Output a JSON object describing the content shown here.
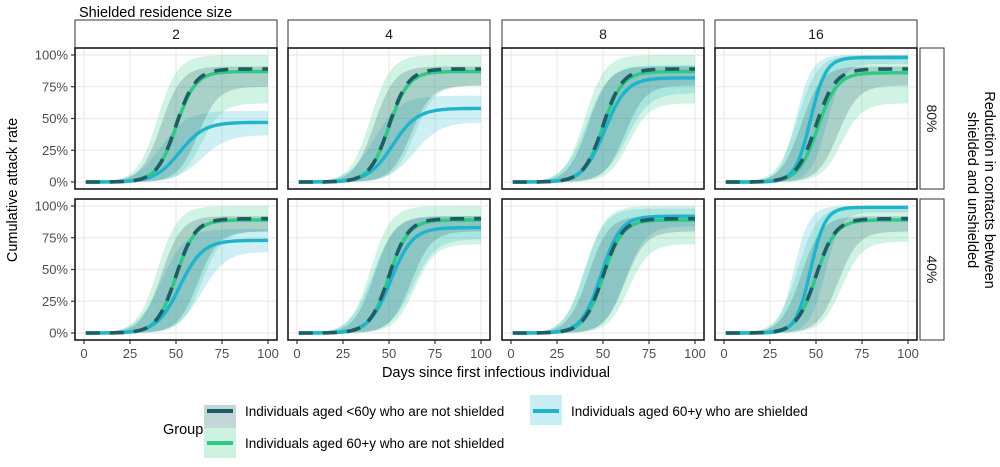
{
  "chart_data": {
    "type": "line",
    "title": "",
    "facet_col_title": "Shielded residence size",
    "facet_row_title": [
      "Reduction in contacts between",
      "shielded and unshielded"
    ],
    "xlabel": "Days since first infectious individual",
    "ylabel": "Cumulative attack rate",
    "xlim": [
      0,
      100
    ],
    "ylim": [
      0,
      1
    ],
    "x_ticks": [
      0,
      25,
      50,
      75,
      100
    ],
    "y_ticks": [
      0,
      0.25,
      0.5,
      0.75,
      1
    ],
    "y_tick_labels": [
      "0%",
      "25%",
      "50%",
      "75%",
      "100%"
    ],
    "grid": true,
    "columns": [
      "2",
      "4",
      "8",
      "16"
    ],
    "rows": [
      "80%",
      "40%"
    ],
    "legend": {
      "title": "Group",
      "placement": "bottom",
      "entries": [
        {
          "key": "young",
          "label": "Individuals aged <60y who are not shielded",
          "color": "#1f5c63",
          "fill": "#c5d6d8",
          "dash": true
        },
        {
          "key": "shielded",
          "label": "Individuals aged 60+y who are shielded",
          "color": "#20b4cc",
          "fill": "#c8eef3",
          "dash": false
        },
        {
          "key": "old",
          "label": "Individuals aged 60+y who are not shielded",
          "color": "#2dca85",
          "fill": "#cdf2df",
          "dash": false
        }
      ]
    },
    "series_model": "logistic curves: final_size, midpoint_day, steepness; ribbon = lower/upper final and midpoint ranges",
    "panels": [
      {
        "row": "80%",
        "col": "2",
        "young": {
          "final": 0.89,
          "mid": 50,
          "k": 0.19,
          "lo_final": 0.75,
          "hi_final": 0.91,
          "lo_mid": 62,
          "hi_mid": 42
        },
        "old": {
          "final": 0.87,
          "mid": 50,
          "k": 0.19,
          "lo_final": 0.62,
          "hi_final": 1.0,
          "lo_mid": 64,
          "hi_mid": 40
        },
        "shielded": {
          "final": 0.47,
          "mid": 52,
          "k": 0.15,
          "lo_final": 0.37,
          "hi_final": 0.56,
          "lo_mid": 64,
          "hi_mid": 42
        }
      },
      {
        "row": "80%",
        "col": "4",
        "young": {
          "final": 0.89,
          "mid": 50,
          "k": 0.19,
          "lo_final": 0.76,
          "hi_final": 0.91,
          "lo_mid": 62,
          "hi_mid": 42
        },
        "old": {
          "final": 0.87,
          "mid": 50,
          "k": 0.19,
          "lo_final": 0.76,
          "hi_final": 1.0,
          "lo_mid": 64,
          "hi_mid": 40
        },
        "shielded": {
          "final": 0.58,
          "mid": 52,
          "k": 0.15,
          "lo_final": 0.47,
          "hi_final": 0.68,
          "lo_mid": 64,
          "hi_mid": 42
        }
      },
      {
        "row": "80%",
        "col": "8",
        "young": {
          "final": 0.89,
          "mid": 50,
          "k": 0.19,
          "lo_final": 0.76,
          "hi_final": 0.91,
          "lo_mid": 62,
          "hi_mid": 42
        },
        "old": {
          "final": 0.87,
          "mid": 50,
          "k": 0.19,
          "lo_final": 0.62,
          "hi_final": 1.0,
          "lo_mid": 64,
          "hi_mid": 40
        },
        "shielded": {
          "final": 0.82,
          "mid": 51,
          "k": 0.17,
          "lo_final": 0.7,
          "hi_final": 0.92,
          "lo_mid": 63,
          "hi_mid": 41
        }
      },
      {
        "row": "80%",
        "col": "16",
        "young": {
          "final": 0.89,
          "mid": 50,
          "k": 0.19,
          "lo_final": 0.76,
          "hi_final": 0.91,
          "lo_mid": 62,
          "hi_mid": 42
        },
        "old": {
          "final": 0.86,
          "mid": 51,
          "k": 0.19,
          "lo_final": 0.62,
          "hi_final": 1.0,
          "lo_mid": 64,
          "hi_mid": 40
        },
        "shielded": {
          "final": 0.98,
          "mid": 47,
          "k": 0.24,
          "lo_final": 0.93,
          "hi_final": 1.0,
          "lo_mid": 56,
          "hi_mid": 39
        }
      },
      {
        "row": "40%",
        "col": "2",
        "young": {
          "final": 0.9,
          "mid": 50,
          "k": 0.19,
          "lo_final": 0.8,
          "hi_final": 0.92,
          "lo_mid": 62,
          "hi_mid": 42
        },
        "old": {
          "final": 0.89,
          "mid": 50,
          "k": 0.19,
          "lo_final": 0.8,
          "hi_final": 1.0,
          "lo_mid": 64,
          "hi_mid": 40
        },
        "shielded": {
          "final": 0.73,
          "mid": 52,
          "k": 0.16,
          "lo_final": 0.64,
          "hi_final": 0.82,
          "lo_mid": 64,
          "hi_mid": 42
        }
      },
      {
        "row": "40%",
        "col": "4",
        "young": {
          "final": 0.9,
          "mid": 50,
          "k": 0.19,
          "lo_final": 0.8,
          "hi_final": 0.92,
          "lo_mid": 62,
          "hi_mid": 42
        },
        "old": {
          "final": 0.89,
          "mid": 50,
          "k": 0.19,
          "lo_final": 0.7,
          "hi_final": 1.0,
          "lo_mid": 64,
          "hi_mid": 40
        },
        "shielded": {
          "final": 0.83,
          "mid": 51,
          "k": 0.17,
          "lo_final": 0.74,
          "hi_final": 0.92,
          "lo_mid": 63,
          "hi_mid": 41
        }
      },
      {
        "row": "40%",
        "col": "8",
        "young": {
          "final": 0.9,
          "mid": 50,
          "k": 0.19,
          "lo_final": 0.8,
          "hi_final": 0.92,
          "lo_mid": 62,
          "hi_mid": 42
        },
        "old": {
          "final": 0.89,
          "mid": 50,
          "k": 0.19,
          "lo_final": 0.7,
          "hi_final": 1.0,
          "lo_mid": 64,
          "hi_mid": 40
        },
        "shielded": {
          "final": 0.92,
          "mid": 49,
          "k": 0.19,
          "lo_final": 0.84,
          "hi_final": 0.98,
          "lo_mid": 62,
          "hi_mid": 40
        }
      },
      {
        "row": "40%",
        "col": "16",
        "young": {
          "final": 0.9,
          "mid": 50,
          "k": 0.19,
          "lo_final": 0.8,
          "hi_final": 0.92,
          "lo_mid": 62,
          "hi_mid": 42
        },
        "old": {
          "final": 0.89,
          "mid": 50,
          "k": 0.19,
          "lo_final": 0.72,
          "hi_final": 1.0,
          "lo_mid": 64,
          "hi_mid": 40
        },
        "shielded": {
          "final": 0.99,
          "mid": 47,
          "k": 0.25,
          "lo_final": 0.95,
          "hi_final": 1.0,
          "lo_mid": 55,
          "hi_mid": 38
        }
      }
    ]
  }
}
